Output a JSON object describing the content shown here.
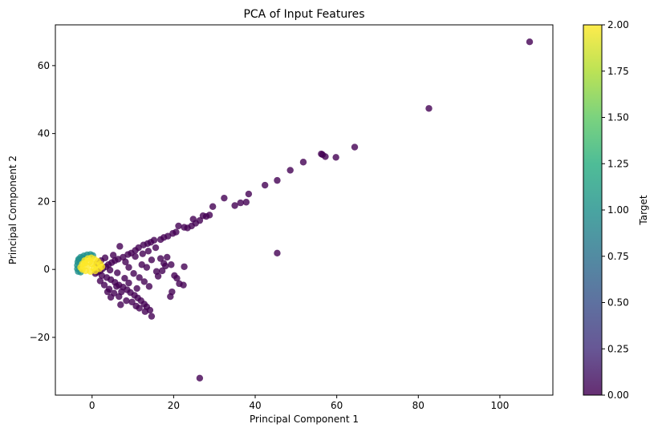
{
  "chart_data": {
    "type": "scatter",
    "title": "PCA of Input Features",
    "xlabel": "Principal Component 1",
    "ylabel": "Principal Component 2",
    "xlim": [
      -9,
      113
    ],
    "ylim": [
      -37,
      72
    ],
    "xticks": [
      0,
      20,
      40,
      60,
      80,
      100
    ],
    "yticks": [
      -20,
      0,
      20,
      40,
      60
    ],
    "grid": false,
    "legend": "none",
    "colormap": "viridis",
    "colorbar": {
      "label": "Target",
      "range": [
        0,
        2
      ],
      "ticks": [
        0.0,
        0.25,
        0.5,
        0.75,
        1.0,
        1.25,
        1.5,
        1.75,
        2.0
      ],
      "tick_labels": [
        "0.00",
        "0.25",
        "0.50",
        "0.75",
        "1.00",
        "1.25",
        "1.50",
        "1.75",
        "2.00"
      ]
    },
    "colors": {
      "class_0": "#440154",
      "class_1": "#21918c",
      "class_2": "#fde725"
    },
    "series": [
      {
        "target": 0,
        "points": [
          [
            107.3,
            67.0
          ],
          [
            82.6,
            47.4
          ],
          [
            64.4,
            36.0
          ],
          [
            59.8,
            33.0
          ],
          [
            57.2,
            33.2
          ],
          [
            56.5,
            33.8
          ],
          [
            56.2,
            34.0
          ],
          [
            51.8,
            31.6
          ],
          [
            48.6,
            29.2
          ],
          [
            45.4,
            26.2
          ],
          [
            42.4,
            24.8
          ],
          [
            38.4,
            22.2
          ],
          [
            37.8,
            19.8
          ],
          [
            36.4,
            19.6
          ],
          [
            35.0,
            18.8
          ],
          [
            32.4,
            21.0
          ],
          [
            29.6,
            18.5
          ],
          [
            28.8,
            16.0
          ],
          [
            28.0,
            15.6
          ],
          [
            27.2,
            15.8
          ],
          [
            26.4,
            14.4
          ],
          [
            25.4,
            13.6
          ],
          [
            24.8,
            14.8
          ],
          [
            24.4,
            12.8
          ],
          [
            23.4,
            12.2
          ],
          [
            22.6,
            12.4
          ],
          [
            21.2,
            12.8
          ],
          [
            20.6,
            11.0
          ],
          [
            19.8,
            10.6
          ],
          [
            18.6,
            9.8
          ],
          [
            17.6,
            9.4
          ],
          [
            16.8,
            8.8
          ],
          [
            15.2,
            8.6
          ],
          [
            14.4,
            8.0
          ],
          [
            13.6,
            7.6
          ],
          [
            12.6,
            7.2
          ],
          [
            11.4,
            6.4
          ],
          [
            10.6,
            5.6
          ],
          [
            9.6,
            4.8
          ],
          [
            8.8,
            4.4
          ],
          [
            6.8,
            6.8
          ],
          [
            7.6,
            3.6
          ],
          [
            6.4,
            3.0
          ],
          [
            5.6,
            2.6
          ],
          [
            4.8,
            2.0
          ],
          [
            4.0,
            1.4
          ],
          [
            3.4,
            0.8
          ],
          [
            2.6,
            0.2
          ],
          [
            2.0,
            -0.4
          ],
          [
            1.4,
            -0.8
          ],
          [
            0.8,
            -1.2
          ],
          [
            2.4,
            -1.8
          ],
          [
            3.6,
            -2.4
          ],
          [
            4.6,
            -3.0
          ],
          [
            5.6,
            -3.8
          ],
          [
            6.6,
            -4.6
          ],
          [
            7.6,
            -5.2
          ],
          [
            8.6,
            -6.0
          ],
          [
            9.4,
            -6.8
          ],
          [
            10.4,
            -7.6
          ],
          [
            11.2,
            -8.4
          ],
          [
            12.0,
            -9.2
          ],
          [
            12.8,
            -10.2
          ],
          [
            13.4,
            -11.0
          ],
          [
            14.2,
            -12.0
          ],
          [
            14.6,
            -13.8
          ],
          [
            13.0,
            -12.4
          ],
          [
            11.6,
            -11.4
          ],
          [
            10.8,
            -10.8
          ],
          [
            9.8,
            -9.6
          ],
          [
            8.4,
            -9.2
          ],
          [
            7.0,
            -10.4
          ],
          [
            6.6,
            -8.0
          ],
          [
            5.4,
            -7.0
          ],
          [
            4.2,
            -5.8
          ],
          [
            3.0,
            -4.6
          ],
          [
            2.0,
            -3.4
          ],
          [
            10.2,
            -1.2
          ],
          [
            11.6,
            -2.4
          ],
          [
            12.8,
            -3.6
          ],
          [
            14.0,
            -5.0
          ],
          [
            9.0,
            0.6
          ],
          [
            12.2,
            1.4
          ],
          [
            14.6,
            2.8
          ],
          [
            16.8,
            3.2
          ],
          [
            18.4,
            3.6
          ],
          [
            17.6,
            1.8
          ],
          [
            19.4,
            1.4
          ],
          [
            20.2,
            -1.8
          ],
          [
            20.8,
            -2.6
          ],
          [
            21.4,
            -4.2
          ],
          [
            19.6,
            -6.6
          ],
          [
            19.2,
            -8.0
          ],
          [
            22.6,
            0.8
          ],
          [
            22.4,
            -4.6
          ],
          [
            15.8,
            -0.6
          ],
          [
            13.4,
            0.6
          ],
          [
            8.0,
            -2.6
          ],
          [
            6.2,
            -1.0
          ],
          [
            4.4,
            -0.2
          ],
          [
            5.2,
            4.2
          ],
          [
            3.2,
            3.4
          ],
          [
            2.2,
            2.6
          ],
          [
            1.2,
            1.8
          ],
          [
            8.2,
            2.2
          ],
          [
            10.6,
            3.8
          ],
          [
            12.4,
            4.6
          ],
          [
            13.8,
            5.4
          ],
          [
            15.6,
            6.4
          ],
          [
            7.2,
            -6.6
          ],
          [
            9.0,
            -4.0
          ],
          [
            11.0,
            -5.6
          ],
          [
            6.0,
            -5.0
          ],
          [
            4.6,
            -8.2
          ],
          [
            3.8,
            -6.6
          ],
          [
            16.2,
            -2.0
          ],
          [
            17.2,
            -0.4
          ],
          [
            18.0,
            1.0
          ],
          [
            45.4,
            4.8
          ],
          [
            26.4,
            -32.0
          ]
        ]
      },
      {
        "target": 1,
        "points": [
          [
            -3.6,
            0.2
          ],
          [
            -3.6,
            1.2
          ],
          [
            -3.5,
            2.2
          ],
          [
            -3.3,
            3.0
          ],
          [
            -2.8,
            3.6
          ],
          [
            -2.0,
            4.0
          ],
          [
            -1.2,
            4.3
          ],
          [
            -0.4,
            4.4
          ],
          [
            0.2,
            4.1
          ],
          [
            -3.4,
            -0.6
          ],
          [
            -2.8,
            -0.8
          ],
          [
            -3.2,
            2.8
          ],
          [
            -2.4,
            3.4
          ]
        ]
      },
      {
        "target": 2,
        "points": [
          [
            -2.8,
            0.6
          ],
          [
            -2.4,
            1.6
          ],
          [
            -1.8,
            2.6
          ],
          [
            -1.0,
            3.2
          ],
          [
            -0.2,
            3.4
          ],
          [
            0.6,
            3.0
          ],
          [
            1.4,
            2.4
          ],
          [
            2.0,
            1.6
          ],
          [
            2.4,
            0.8
          ],
          [
            1.8,
            0.2
          ],
          [
            0.8,
            -0.4
          ],
          [
            -0.4,
            -0.6
          ],
          [
            -1.6,
            -0.4
          ],
          [
            -2.4,
            0.0
          ],
          [
            -1.2,
            1.0
          ],
          [
            0.0,
            1.6
          ],
          [
            1.0,
            1.2
          ],
          [
            -0.6,
            2.2
          ],
          [
            0.4,
            0.4
          ],
          [
            -1.8,
            1.8
          ]
        ]
      }
    ]
  }
}
